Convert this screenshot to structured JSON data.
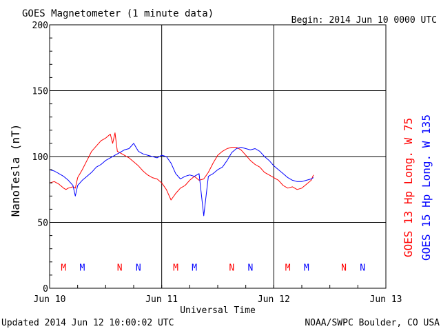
{
  "header": {
    "title": "GOES Magnetometer (1 minute data)",
    "begin": "Begin:  2014 Jun 10 0000 UTC"
  },
  "footer": {
    "updated": "Updated 2014 Jun 12 10:00:02 UTC",
    "source": "NOAA/SWPC Boulder, CO USA"
  },
  "chart_data": {
    "type": "line",
    "title": "GOES Magnetometer (1 minute data)",
    "xlabel": "Universal Time",
    "ylabel": "NanoTesla (nT)",
    "xlim": [
      0,
      72
    ],
    "x_unit": "hours since 2014 Jun 10 0000 UTC",
    "ylim": [
      0,
      200
    ],
    "x_ticks": [
      {
        "value": 0,
        "label": "Jun 10"
      },
      {
        "value": 24,
        "label": "Jun 11"
      },
      {
        "value": 48,
        "label": "Jun 12"
      },
      {
        "value": 72,
        "label": "Jun 13"
      }
    ],
    "y_ticks": [
      {
        "value": 0,
        "label": "0"
      },
      {
        "value": 50,
        "label": "50"
      },
      {
        "value": 100,
        "label": "100"
      },
      {
        "value": 150,
        "label": "150"
      },
      {
        "value": 200,
        "label": "200"
      }
    ],
    "grid": true,
    "legend_position": "right, rotated vertical",
    "series": [
      {
        "name": "GOES 13 Hp  Long. W 75",
        "color": "#ff0000",
        "x": [
          0,
          1,
          2,
          3,
          3.5,
          4,
          5,
          5.5,
          6,
          7,
          8,
          9,
          10,
          11,
          12,
          13,
          13.5,
          14,
          14.5,
          15,
          15.5,
          16,
          17,
          18,
          19,
          20,
          21,
          22,
          23,
          24,
          25,
          26,
          27,
          28,
          29,
          30,
          31,
          32,
          33,
          34,
          35,
          36,
          37,
          38,
          39,
          40,
          41,
          42,
          43,
          44,
          45,
          46,
          47,
          48,
          49,
          50,
          51,
          52,
          53,
          54,
          55,
          56,
          56.5
        ],
        "y": [
          80,
          81,
          79,
          76,
          75,
          76,
          77,
          76,
          84,
          90,
          97,
          104,
          108,
          112,
          114,
          117,
          110,
          118,
          104,
          103,
          102,
          101,
          99,
          96,
          93,
          89,
          86,
          84,
          83,
          80,
          75,
          67,
          72,
          76,
          78,
          82,
          85,
          82,
          83,
          88,
          95,
          101,
          104,
          106,
          107,
          107,
          105,
          101,
          97,
          94,
          92,
          88,
          86,
          84,
          82,
          78,
          76,
          77,
          75,
          76,
          79,
          82,
          86
        ],
        "markers": [
          {
            "label": "M",
            "x": 3.0
          },
          {
            "label": "N",
            "x": 15.0
          },
          {
            "label": "M",
            "x": 27.0
          },
          {
            "label": "N",
            "x": 39.0
          },
          {
            "label": "M",
            "x": 51.0
          },
          {
            "label": "N",
            "x": 63.0
          }
        ]
      },
      {
        "name": "GOES 15 Hp  Long. W 135",
        "color": "#0000ff",
        "x": [
          0,
          1,
          2,
          3,
          4,
          5,
          5.5,
          6,
          7,
          8,
          9,
          10,
          11,
          12,
          13,
          14,
          15,
          16,
          17,
          18,
          19,
          20,
          21,
          22,
          23,
          24,
          25,
          26,
          27,
          28,
          29,
          30,
          31,
          32,
          33,
          34,
          35,
          36,
          37,
          38,
          39,
          40,
          41,
          42,
          43,
          44,
          45,
          46,
          47,
          48,
          49,
          50,
          51,
          52,
          53,
          54,
          55,
          56,
          56.5
        ],
        "y": [
          90,
          89,
          87,
          85,
          82,
          78,
          70,
          78,
          82,
          85,
          88,
          92,
          94,
          97,
          99,
          101,
          103,
          105,
          106,
          110,
          104,
          102,
          101,
          100,
          99,
          101,
          100,
          95,
          87,
          83,
          85,
          86,
          85,
          87,
          55,
          85,
          87,
          90,
          92,
          97,
          103,
          106,
          107,
          106,
          105,
          106,
          104,
          100,
          97,
          93,
          90,
          87,
          84,
          82,
          81,
          81,
          82,
          83,
          84
        ],
        "markers": [
          {
            "label": "M",
            "x": 7.0
          },
          {
            "label": "N",
            "x": 19.0
          },
          {
            "label": "M",
            "x": 31.0
          },
          {
            "label": "N",
            "x": 43.0
          },
          {
            "label": "M",
            "x": 55.0
          },
          {
            "label": "N",
            "x": 67.0
          }
        ]
      }
    ],
    "marker_level": 16
  }
}
